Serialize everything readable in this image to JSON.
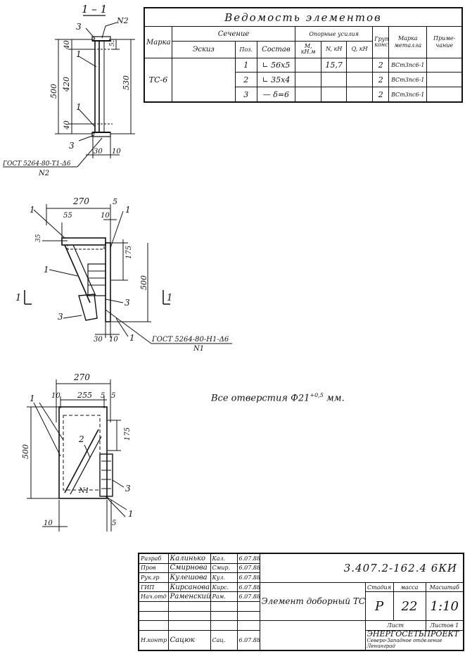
{
  "drawing": {
    "section_title": "1 – 1",
    "weld_mark_2": "N2",
    "weld_mark_1": "N1",
    "gost_weld_1": "ГОСТ 5264-80-Т1-Δ6",
    "gost_weld_2": "ГОСТ 5264-80-Н1-Δ6",
    "dims": {
      "d500": "500",
      "d420": "420",
      "d40": "40",
      "d530": "530",
      "d55": "55",
      "d30": "30",
      "d10": "10",
      "d270": "270",
      "d5": "5",
      "d175": "175",
      "d35": "35",
      "d255": "255"
    },
    "positions": {
      "p1": "1",
      "p2": "2",
      "p3": "3"
    },
    "n1_label": "N1"
  },
  "note": {
    "text": "Все  отверстия  Ф21",
    "tol": "+0,5",
    "unit": " мм."
  },
  "spec": {
    "title": "Ведомость  элементов",
    "col_marka": "Марка",
    "col_section": "Сечение",
    "col_sketch": "Эскиз",
    "col_pos": "Поз.",
    "col_sostav": "Состав",
    "col_forces": "Опорные усилия",
    "col_m": "М, кН.м",
    "col_n": "N, кН",
    "col_q": "Q, кН",
    "col_group": "Группа констр.",
    "col_metal": "Марка металла",
    "col_note": "Приме- чание",
    "mark_value": "ТС-6",
    "rows": [
      {
        "pos": "1",
        "sostav": "∟ 56х5",
        "m": "",
        "n": "15,7",
        "q": "",
        "group": "2",
        "metal": "ВСт3пс6-1",
        "note": ""
      },
      {
        "pos": "2",
        "sostav": "∟ 35х4",
        "m": "",
        "n": "",
        "q": "",
        "group": "2",
        "metal": "ВСт3пс6-1",
        "note": ""
      },
      {
        "pos": "3",
        "sostav": "— δ=6",
        "m": "",
        "n": "",
        "q": "",
        "group": "2",
        "metal": "ВСт3пс6-1",
        "note": ""
      }
    ]
  },
  "stamp": {
    "doc_number": "3.407.2-162.4   6КИ",
    "element_name": "Элемент  доборный  ТС-6",
    "stage_label": "Стадия",
    "mass_label": "масса",
    "scale_label": "Масштаб",
    "stage_value": "Р",
    "mass_value": "22",
    "scale_value": "1:10",
    "sheet_label": "Лист",
    "sheets_label": "Листов 1",
    "org_name": "ЭНЕРГОСЕТЬПРОЕКТ",
    "org_sub": "Северо-Западное отделение Ленинград",
    "people": [
      {
        "role": "Разраб",
        "name": "Калинько",
        "sign": "Кал.",
        "date": "6.07.88"
      },
      {
        "role": "Пров",
        "name": "Смирнова",
        "sign": "Смир.",
        "date": "6.07.88"
      },
      {
        "role": "Рук.гр",
        "name": "Кулешова",
        "sign": "Кул.",
        "date": "6.07.88"
      },
      {
        "role": "ГИП",
        "name": "Кирсанова",
        "sign": "Кирс.",
        "date": "6.07.88"
      },
      {
        "role": "Нач.отд",
        "name": "Раменский",
        "sign": "Рам.",
        "date": "6.07.88"
      },
      {
        "role": "",
        "name": "",
        "sign": "",
        "date": ""
      },
      {
        "role": "",
        "name": "",
        "sign": "",
        "date": ""
      },
      {
        "role": "",
        "name": "",
        "sign": "",
        "date": ""
      },
      {
        "role": "Н.контр",
        "name": "Сацюк",
        "sign": "Сац.",
        "date": "6.07.88"
      }
    ]
  }
}
